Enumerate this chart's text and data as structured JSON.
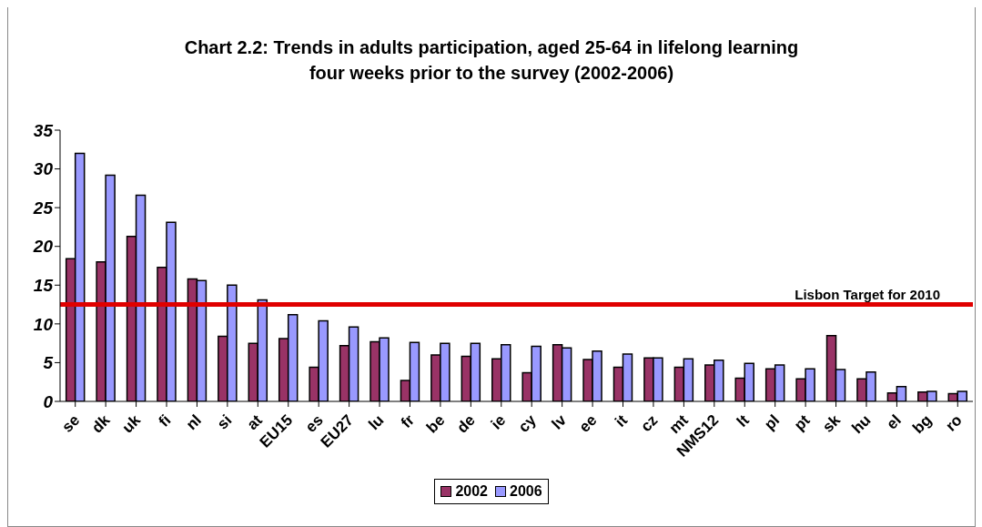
{
  "chart_data": {
    "type": "bar",
    "title": "Chart 2.2: Trends in adults participation, aged 25-64 in lifelong learning\nfour weeks prior to the survey (2002-2006)",
    "categories": [
      "se",
      "dk",
      "uk",
      "fi",
      "nl",
      "si",
      "at",
      "EU15",
      "es",
      "EU27",
      "lu",
      "fr",
      "be",
      "de",
      "ie",
      "cy",
      "lv",
      "ee",
      "it",
      "cz",
      "mt",
      "NMS12",
      "lt",
      "pl",
      "pt",
      "sk",
      "hu",
      "el",
      "bg",
      "ro"
    ],
    "series": [
      {
        "name": "2002",
        "color": "#993366",
        "values": [
          18.4,
          18,
          21.3,
          17.3,
          15.8,
          8.4,
          7.5,
          8.1,
          4.4,
          7.2,
          7.7,
          2.7,
          6,
          5.8,
          5.5,
          3.7,
          7.3,
          5.4,
          4.4,
          5.6,
          4.4,
          4.7,
          3,
          4.2,
          2.9,
          8.5,
          2.9,
          1.1,
          1.2,
          1
        ]
      },
      {
        "name": "2006",
        "color": "#9999ff",
        "values": [
          32,
          29.2,
          26.6,
          23.1,
          15.6,
          15,
          13.1,
          11.2,
          10.4,
          9.6,
          8.2,
          7.6,
          7.5,
          7.5,
          7.3,
          7.1,
          6.9,
          6.5,
          6.1,
          5.6,
          5.5,
          5.3,
          4.9,
          4.7,
          4.2,
          4.1,
          3.8,
          1.9,
          1.3,
          1.3
        ]
      }
    ],
    "ylim": [
      0,
      35
    ],
    "yticks": [
      0,
      5,
      10,
      15,
      20,
      25,
      30,
      35
    ],
    "grid": false,
    "legend": "bottom",
    "ref_lines": [
      {
        "axis": "y",
        "value": 12.5,
        "label": "Lisbon Target for 2010",
        "color": "#e00000"
      }
    ]
  }
}
